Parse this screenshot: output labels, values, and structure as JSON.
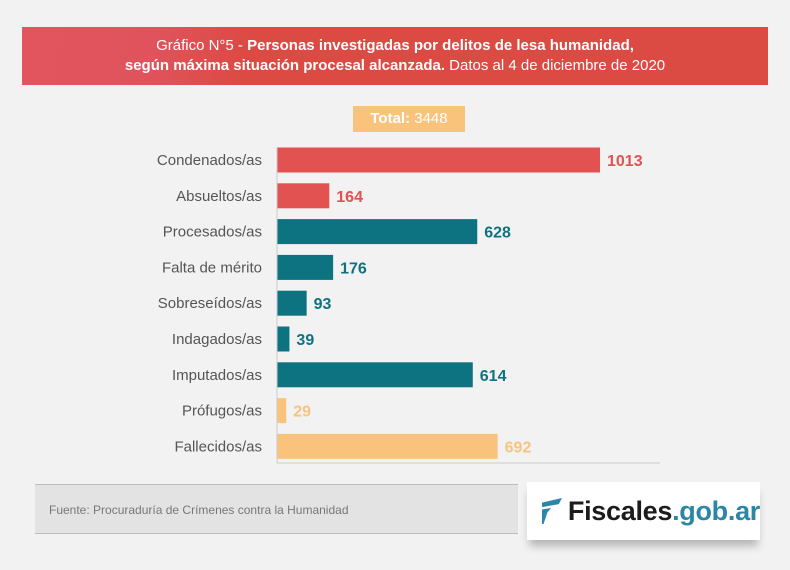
{
  "header": {
    "prefix": "Gráfico N°5 - ",
    "title_bold_1": "Personas investigadas por delitos de lesa humanidad,",
    "title_bold_2": "según máxima situación procesal alcanzada.",
    "title_light_2": " Datos al 4 de diciembre de 2020"
  },
  "total": {
    "label": "Total:",
    "value": "3448"
  },
  "colors": {
    "red": "#e15250",
    "teal": "#0e7380",
    "orange": "#f9c37b",
    "axis": "#cccccc"
  },
  "chart_data": {
    "type": "bar",
    "orientation": "horizontal",
    "title": "Gráfico N°5 - Personas investigadas por delitos de lesa humanidad, según máxima situación procesal alcanzada. Datos al 4 de diciembre de 2020",
    "categories": [
      "Condenados/as",
      "Absueltos/as",
      "Procesados/as",
      "Falta de mérito",
      "Sobreseídos/as",
      "Indagados/as",
      "Imputados/as",
      "Prófugos/as",
      "Fallecidos/as"
    ],
    "values": [
      1013,
      164,
      628,
      176,
      93,
      39,
      614,
      29,
      692
    ],
    "bar_colors": [
      "red",
      "red",
      "teal",
      "teal",
      "teal",
      "teal",
      "teal",
      "orange",
      "orange"
    ],
    "xlim": [
      0,
      1200
    ],
    "grid": false,
    "data_labels": true,
    "xlabel": "",
    "ylabel": ""
  },
  "footer": {
    "source": "Fuente: Procuraduría de Crímenes contra la Humanidad",
    "logo_part1": "Fiscales",
    "logo_part2": ".gob.ar"
  }
}
